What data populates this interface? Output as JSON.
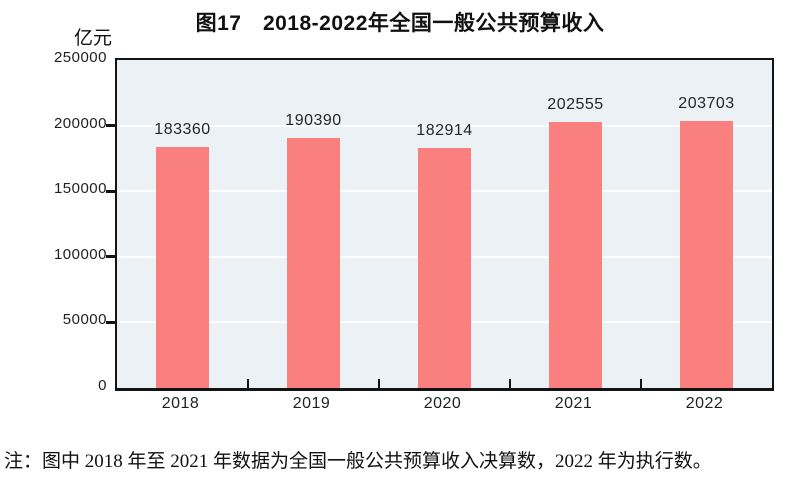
{
  "chart_data": {
    "type": "bar",
    "title": "图17　2018-2022年全国一般公共预算收入",
    "unit_label": "亿元",
    "categories": [
      "2018",
      "2019",
      "2020",
      "2021",
      "2022"
    ],
    "values": [
      183360,
      190390,
      182914,
      202555,
      203703
    ],
    "value_labels": [
      "183360",
      "190390",
      "182914",
      "202555",
      "203703"
    ],
    "xlabel": "",
    "ylabel": "亿元",
    "ylim": [
      0,
      250000
    ],
    "ytick_interval": 50000,
    "ytick_labels": [
      "0",
      "50000",
      "100000",
      "150000",
      "200000",
      "250000"
    ],
    "grid": "horizontal",
    "legend_position": "none",
    "colors": {
      "bar": "#FA8080",
      "plot_background": "#EBF1F5",
      "gridline": "#FFFFFF",
      "axis": "#141414",
      "text": "#1f1f1f"
    }
  },
  "note": "注：图中 2018 年至 2021 年数据为全国一般公共预算收入决算数，2022 年为执行数。"
}
